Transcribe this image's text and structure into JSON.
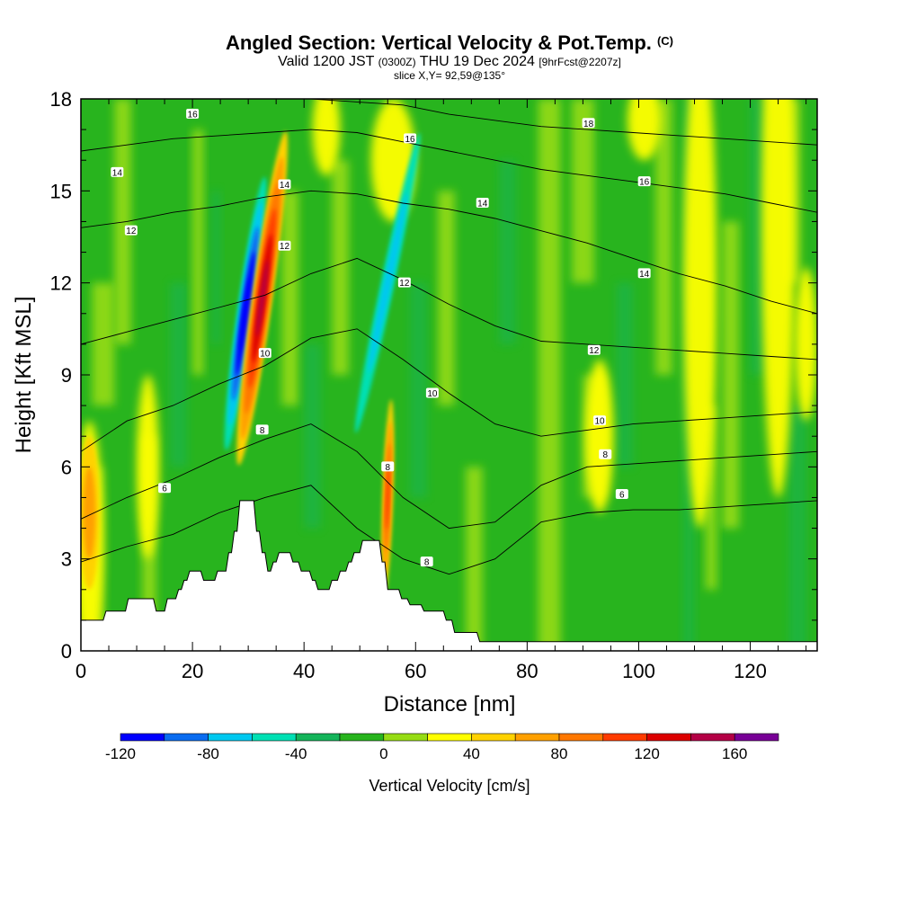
{
  "header": {
    "title": "Angled Section: Vertical Velocity & Pot.Temp.",
    "copyright": "(C)",
    "valid_prefix": "Valid 1200 JST",
    "valid_utc": "(0300Z)",
    "valid_date": "THU 19 Dec 2024",
    "forecast": "[9hrFcst@2207z]",
    "slice": "slice X,Y= 92,59@135°"
  },
  "chart_data": {
    "type": "heatmap",
    "xlabel": "Distance [nm]",
    "ylabel": "Height [Kft MSL]",
    "xlim": [
      0,
      132
    ],
    "ylim": [
      0,
      18
    ],
    "xticks": [
      0,
      20,
      40,
      60,
      80,
      100,
      120
    ],
    "yticks": [
      0,
      3,
      6,
      9,
      12,
      15,
      18
    ],
    "colorbar": {
      "label": "Vertical Velocity [cm/s]",
      "ticks": [
        -120,
        -80,
        -40,
        0,
        40,
        80,
        120,
        160
      ],
      "levels": [
        -120,
        -100,
        -80,
        -60,
        -40,
        -20,
        0,
        20,
        40,
        60,
        80,
        100,
        120,
        140,
        160,
        180
      ],
      "colors": [
        "#0000ff",
        "#0a6cf0",
        "#00c8f0",
        "#00e0b4",
        "#14b45a",
        "#28b41e",
        "#96dc14",
        "#ffff00",
        "#ffd200",
        "#ffa000",
        "#ff7800",
        "#ff3c00",
        "#dc0000",
        "#b40046",
        "#780096"
      ]
    },
    "field_features": [
      {
        "desc": "downdraft",
        "x": 29.5,
        "y": 11.0,
        "value": -120
      },
      {
        "desc": "updraft",
        "x": 32.5,
        "y": 11.5,
        "value": 140
      },
      {
        "desc": "downdraft",
        "x": 55.0,
        "y": 11.5,
        "value": -60
      },
      {
        "desc": "updraft",
        "x": 55.0,
        "y": 5.0,
        "value": 110
      },
      {
        "desc": "updraft",
        "x": 111.0,
        "y": 12.0,
        "value": 40
      },
      {
        "desc": "updraft",
        "x": 1.5,
        "y": 4.5,
        "value": 60
      }
    ],
    "terrain": [
      [
        0,
        1.0
      ],
      [
        4,
        1.0
      ],
      [
        4.5,
        1.3
      ],
      [
        8,
        1.3
      ],
      [
        8.5,
        1.7
      ],
      [
        13,
        1.7
      ],
      [
        13.5,
        1.3
      ],
      [
        15,
        1.3
      ],
      [
        15.5,
        1.7
      ],
      [
        17,
        1.7
      ],
      [
        17.5,
        2.0
      ],
      [
        18,
        2.0
      ],
      [
        18.5,
        2.3
      ],
      [
        19,
        2.3
      ],
      [
        19.5,
        2.6
      ],
      [
        21.5,
        2.6
      ],
      [
        22,
        2.3
      ],
      [
        24,
        2.3
      ],
      [
        24.5,
        2.6
      ],
      [
        26,
        2.6
      ],
      [
        26.5,
        3.2
      ],
      [
        27,
        3.2
      ],
      [
        27.5,
        3.9
      ],
      [
        28,
        3.9
      ],
      [
        28.5,
        4.9
      ],
      [
        31,
        4.9
      ],
      [
        31.5,
        3.9
      ],
      [
        32,
        3.9
      ],
      [
        32.5,
        3.2
      ],
      [
        33,
        3.2
      ],
      [
        33.5,
        2.6
      ],
      [
        34,
        2.6
      ],
      [
        34.5,
        2.9
      ],
      [
        35,
        2.9
      ],
      [
        35.5,
        3.2
      ],
      [
        37.5,
        3.2
      ],
      [
        38,
        2.9
      ],
      [
        39,
        2.9
      ],
      [
        39.5,
        2.6
      ],
      [
        41,
        2.6
      ],
      [
        41.5,
        2.3
      ],
      [
        42,
        2.3
      ],
      [
        42.5,
        2.0
      ],
      [
        44.5,
        2.0
      ],
      [
        45,
        2.3
      ],
      [
        46,
        2.3
      ],
      [
        46.5,
        2.6
      ],
      [
        47.5,
        2.6
      ],
      [
        48,
        2.9
      ],
      [
        48.5,
        2.9
      ],
      [
        49,
        3.2
      ],
      [
        50,
        3.2
      ],
      [
        50.5,
        3.6
      ],
      [
        53.5,
        3.6
      ],
      [
        54,
        2.9
      ],
      [
        54.5,
        2.9
      ],
      [
        55,
        2.0
      ],
      [
        57,
        2.0
      ],
      [
        57.5,
        1.7
      ],
      [
        58.5,
        1.7
      ],
      [
        59,
        1.5
      ],
      [
        61,
        1.5
      ],
      [
        61.5,
        1.3
      ],
      [
        65,
        1.3
      ],
      [
        65.5,
        1.0
      ],
      [
        66.5,
        1.0
      ],
      [
        67,
        0.6
      ],
      [
        71,
        0.6
      ],
      [
        71.5,
        0.3
      ],
      [
        132,
        0.3
      ]
    ],
    "isentropes": [
      {
        "level": "6",
        "y": [
          2.9,
          3.4,
          3.8,
          4.5,
          5.0,
          5.4,
          4.0,
          3.0,
          2.5,
          3.0,
          4.2,
          4.5,
          4.6,
          4.6,
          4.7,
          4.8,
          4.9
        ],
        "labels": [
          {
            "x": 15,
            "y": 5.3
          },
          {
            "x": 97,
            "y": 5.1
          }
        ]
      },
      {
        "level": "8",
        "y": [
          4.3,
          5.0,
          5.6,
          6.3,
          6.9,
          7.4,
          6.5,
          5.0,
          4.0,
          4.2,
          5.4,
          6.0,
          6.1,
          6.2,
          6.3,
          6.4,
          6.5
        ],
        "labels": [
          {
            "x": 32.5,
            "y": 7.2
          },
          {
            "x": 55,
            "y": 6.0
          },
          {
            "x": 62,
            "y": 2.9
          },
          {
            "x": 94,
            "y": 6.4
          }
        ]
      },
      {
        "level": "10",
        "y": [
          6.5,
          7.5,
          8.0,
          8.7,
          9.3,
          10.2,
          10.5,
          9.5,
          8.4,
          7.4,
          7.0,
          7.2,
          7.4,
          7.5,
          7.6,
          7.7,
          7.8
        ],
        "labels": [
          {
            "x": 33,
            "y": 9.7
          },
          {
            "x": 63,
            "y": 8.4
          },
          {
            "x": 93,
            "y": 7.5
          }
        ]
      },
      {
        "level": "12",
        "y": [
          10.0,
          10.4,
          10.8,
          11.2,
          11.6,
          12.3,
          12.8,
          12.1,
          11.3,
          10.6,
          10.1,
          10.0,
          9.9,
          9.8,
          9.7,
          9.6,
          9.5
        ],
        "labels": [
          {
            "x": 9,
            "y": 13.7
          },
          {
            "x": 36.5,
            "y": 13.2
          },
          {
            "x": 58,
            "y": 12.0
          },
          {
            "x": 92,
            "y": 9.8
          }
        ]
      },
      {
        "level": "14",
        "y": [
          13.8,
          14.0,
          14.3,
          14.5,
          14.8,
          15.0,
          14.9,
          14.6,
          14.4,
          14.1,
          13.7,
          13.3,
          12.8,
          12.3,
          11.9,
          11.4,
          11.0
        ],
        "labels": [
          {
            "x": 6.5,
            "y": 15.6
          },
          {
            "x": 36.5,
            "y": 15.2
          },
          {
            "x": 72,
            "y": 14.6
          },
          {
            "x": 101,
            "y": 12.3
          }
        ]
      },
      {
        "level": "16",
        "y": [
          16.3,
          16.5,
          16.7,
          16.8,
          16.9,
          17.0,
          16.9,
          16.6,
          16.3,
          16.0,
          15.7,
          15.5,
          15.3,
          15.1,
          14.9,
          14.6,
          14.3
        ],
        "labels": [
          {
            "x": 20,
            "y": 17.5
          },
          {
            "x": 59,
            "y": 16.7
          },
          {
            "x": 101,
            "y": 15.3
          }
        ]
      },
      {
        "level": "18",
        "y": [
          18.0,
          18.0,
          18.0,
          18.0,
          18.0,
          18.0,
          17.9,
          17.8,
          17.5,
          17.3,
          17.1,
          17.0,
          16.9,
          16.8,
          16.7,
          16.6,
          16.5
        ],
        "labels": [
          {
            "x": 91,
            "y": 17.2
          }
        ]
      }
    ]
  }
}
